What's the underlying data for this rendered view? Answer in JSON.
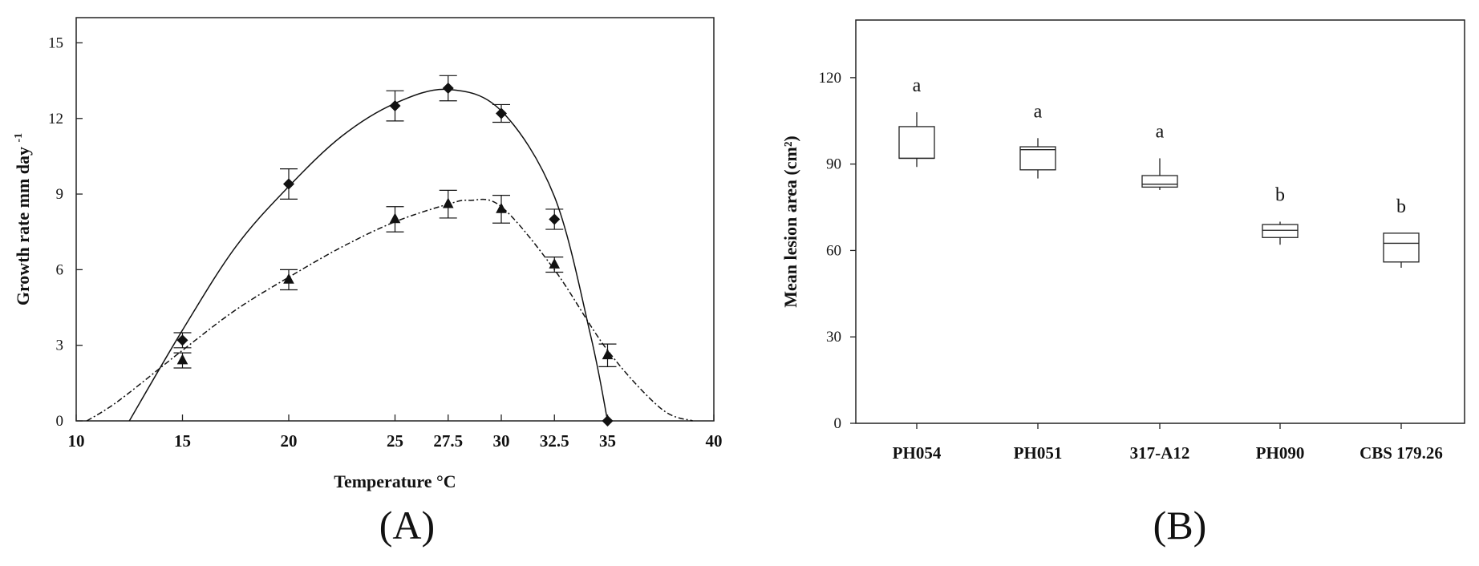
{
  "chart_data": [
    {
      "type": "line",
      "panel_label": "(A)",
      "xlabel": "Temperature °C",
      "ylabel": "Growth rate mm day",
      "ylabel_sup": "-1",
      "xlim": [
        10,
        40
      ],
      "ylim": [
        0,
        16
      ],
      "x_ticks": [
        "10",
        "15",
        "20",
        "25",
        "27.5",
        "30",
        "32.5",
        "35",
        "40"
      ],
      "x_tick_values": [
        10,
        15,
        20,
        25,
        27.5,
        30,
        32.5,
        35,
        40
      ],
      "y_ticks": [
        "0",
        "3",
        "6",
        "9",
        "12",
        "15"
      ],
      "y_tick_values": [
        0,
        3,
        6,
        9,
        12,
        15
      ],
      "grid": false,
      "series": [
        {
          "marker": "diamond",
          "line_style": "solid",
          "x": [
            15,
            20,
            25,
            27.5,
            30,
            32.5,
            35
          ],
          "y": [
            3.2,
            9.4,
            12.5,
            13.2,
            12.2,
            8.0,
            0.0
          ],
          "err": [
            0.3,
            0.6,
            0.6,
            0.5,
            0.35,
            0.4,
            0.0
          ],
          "fit_x": [
            12.5,
            15,
            17.5,
            20,
            22.5,
            25,
            27.5,
            30,
            32.5,
            34.2,
            35
          ],
          "fit_y": [
            0.0,
            3.6,
            6.9,
            9.3,
            11.3,
            12.6,
            13.15,
            12.3,
            8.9,
            3.4,
            0.0
          ]
        },
        {
          "marker": "triangle",
          "line_style": "dash-dot",
          "x": [
            15,
            20,
            25,
            27.5,
            30,
            32.5,
            35
          ],
          "y": [
            2.4,
            5.6,
            8.0,
            8.6,
            8.4,
            6.2,
            2.6
          ],
          "err": [
            0.3,
            0.4,
            0.5,
            0.55,
            0.55,
            0.3,
            0.45
          ],
          "fit_x": [
            10.5,
            12,
            15,
            17.5,
            20,
            22.5,
            25,
            27.5,
            28.5,
            30,
            32.5,
            35,
            37.5,
            39
          ],
          "fit_y": [
            0.0,
            0.8,
            2.8,
            4.4,
            5.7,
            6.9,
            7.9,
            8.6,
            8.75,
            8.5,
            6.0,
            2.8,
            0.5,
            0.0
          ]
        }
      ]
    },
    {
      "type": "box",
      "panel_label": "(B)",
      "ylabel": "Mean lesion area (cm²)",
      "ylim": [
        0,
        140
      ],
      "y_ticks": [
        "0",
        "30",
        "60",
        "90",
        "120"
      ],
      "y_tick_values": [
        0,
        30,
        60,
        90,
        120
      ],
      "categories": [
        "PH054",
        "PH051",
        "317-A12",
        "PH090",
        "CBS 179.26"
      ],
      "boxes": [
        {
          "min": 89,
          "q1": 92,
          "median": 92,
          "q3": 103,
          "max": 108,
          "letter": "a"
        },
        {
          "min": 85,
          "q1": 88,
          "median": 95,
          "q3": 96,
          "max": 99,
          "letter": "a"
        },
        {
          "min": 81,
          "q1": 82,
          "median": 83,
          "q3": 86,
          "max": 92,
          "letter": "a"
        },
        {
          "min": 62,
          "q1": 64.5,
          "median": 67,
          "q3": 69,
          "max": 70,
          "letter": "b"
        },
        {
          "min": 54,
          "q1": 56,
          "median": 62.5,
          "q3": 66,
          "max": 66,
          "letter": "b"
        }
      ],
      "grid": false
    }
  ]
}
